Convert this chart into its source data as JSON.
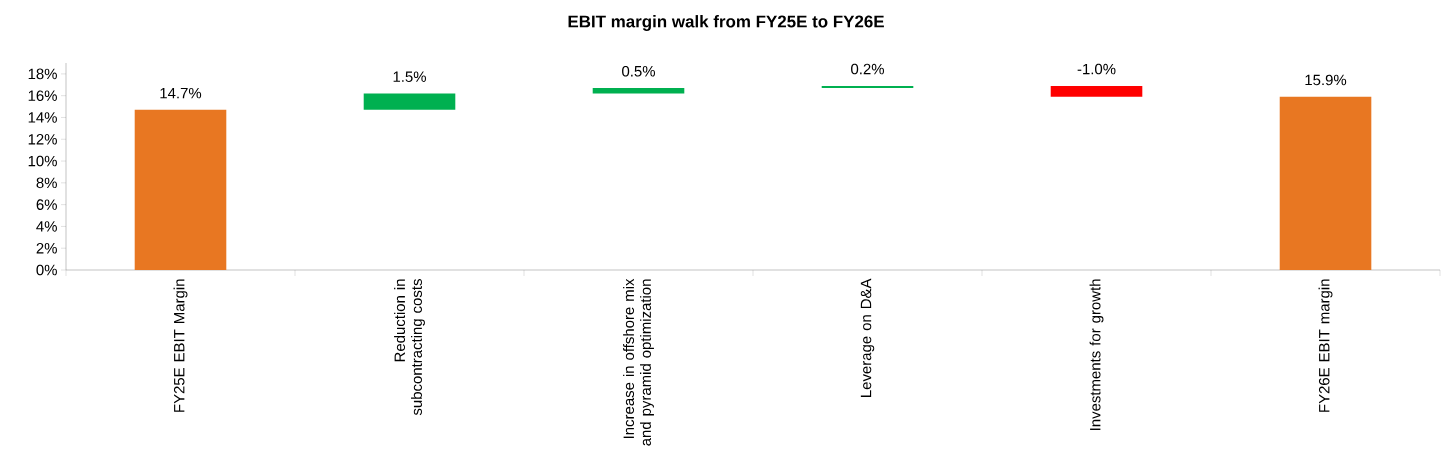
{
  "chart_data": {
    "type": "bar",
    "title": "EBIT margin walk from FY25E to FY26E",
    "categories": [
      "FY25E EBIT Margin",
      "Reduction in subcontracting costs",
      "Increase in offshore mix and pyramid optimization",
      "Leverage on D&A",
      "Investments for growth",
      "FY26E EBIT margin"
    ],
    "values": [
      14.7,
      1.5,
      0.5,
      0.2,
      -1.0,
      15.9
    ],
    "base": [
      0,
      14.7,
      16.2,
      16.7,
      16.9,
      0
    ],
    "colors": [
      "#e87722",
      "#00b050",
      "#00b050",
      "#00b050",
      "#ff0000",
      "#e87722"
    ],
    "value_labels": [
      "14.7%",
      "1.5%",
      "0.5%",
      "0.2%",
      "-1.0%",
      "15.9%"
    ],
    "ylim": [
      0,
      19
    ],
    "yticks": [
      {
        "value": 0,
        "label": "0%"
      },
      {
        "value": 2,
        "label": "2%"
      },
      {
        "value": 4,
        "label": "4%"
      },
      {
        "value": 6,
        "label": "6%"
      },
      {
        "value": 8,
        "label": "8%"
      },
      {
        "value": 10,
        "label": "10%"
      },
      {
        "value": 12,
        "label": "12%"
      },
      {
        "value": 14,
        "label": "14%"
      },
      {
        "value": 16,
        "label": "16%"
      },
      {
        "value": 18,
        "label": "18%"
      }
    ]
  }
}
